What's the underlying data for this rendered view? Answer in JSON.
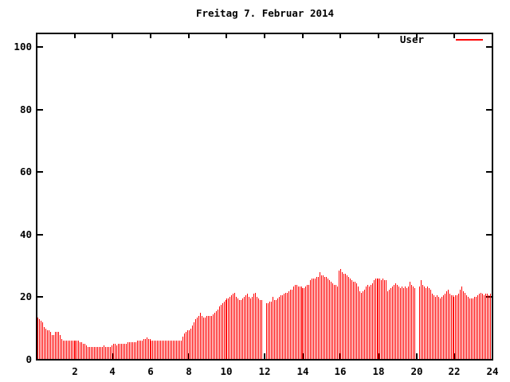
{
  "title": "Freitag 7. Februar 2014",
  "legend": {
    "label": "User",
    "position": "top-right"
  },
  "colors": {
    "bar": "#ff0000",
    "axis": "#000000",
    "background": "#ffffff",
    "text": "#000000"
  },
  "chart_data": {
    "type": "bar",
    "title": "Freitag 7. Februar 2014",
    "xlabel": "",
    "ylabel": "",
    "x_unit": "hour of day",
    "sample_step_hours": 0.08333,
    "xlim": [
      0,
      24
    ],
    "ylim": [
      0,
      104
    ],
    "x_ticks": [
      2,
      4,
      6,
      8,
      10,
      12,
      14,
      16,
      18,
      20,
      22,
      24
    ],
    "y_ticks": [
      0,
      20,
      40,
      60,
      80,
      100
    ],
    "grid": false,
    "legend_position": "top-right",
    "series": [
      {
        "name": "User",
        "color": "#ff0000",
        "values": [
          13.5,
          13,
          12.5,
          12,
          10.5,
          10,
          9.5,
          9.5,
          9,
          8,
          8,
          9,
          9,
          9,
          8,
          6.5,
          6,
          6,
          6,
          6,
          6,
          6,
          6,
          6,
          6,
          6,
          6,
          5.5,
          5.5,
          5,
          5,
          4.5,
          4,
          4,
          4,
          4,
          4,
          4,
          4,
          4,
          4,
          4,
          4.5,
          4,
          4,
          4,
          4,
          4.5,
          5,
          5,
          4.5,
          5,
          5,
          5,
          5,
          5,
          5,
          5.5,
          5.5,
          5.5,
          5.5,
          5.5,
          5.5,
          6,
          6,
          6,
          6,
          6.5,
          6.5,
          7,
          6.5,
          6.5,
          6,
          6,
          6,
          6,
          6,
          6,
          6,
          6,
          6,
          6,
          6,
          6,
          6,
          6,
          6,
          6,
          6,
          6,
          6,
          6,
          7.5,
          8.5,
          9,
          9.5,
          9.5,
          10,
          11,
          12,
          13,
          13.5,
          14,
          15,
          14,
          13.5,
          13.5,
          14,
          14,
          14,
          14,
          14.5,
          15,
          15.5,
          16,
          17,
          17.5,
          18,
          18.5,
          19,
          19.5,
          19.5,
          20,
          20.5,
          21,
          21.5,
          20,
          19.5,
          19,
          19,
          19.5,
          20,
          20.5,
          21,
          20,
          19.5,
          20,
          21,
          21.5,
          20,
          19.5,
          19,
          19,
          0,
          0,
          18,
          18,
          18.5,
          18.5,
          20,
          19,
          19,
          19.5,
          20,
          20.5,
          20.5,
          21,
          21.5,
          21.5,
          22,
          22.5,
          22.5,
          23.5,
          24,
          24,
          23.5,
          23.5,
          23.5,
          23,
          23,
          23.5,
          24,
          24,
          25.5,
          26,
          26,
          26,
          26.5,
          26.5,
          28,
          27,
          27,
          26.5,
          26.5,
          26,
          25.5,
          25,
          24.5,
          24,
          24,
          23.5,
          28.5,
          29,
          28,
          27.5,
          27.5,
          27,
          26.5,
          26,
          25.5,
          25,
          25,
          24.5,
          23.5,
          22,
          21.5,
          22,
          22.5,
          23.5,
          24,
          23.5,
          24,
          24.5,
          25.5,
          26,
          26,
          26,
          26,
          25.5,
          26,
          25.5,
          25.5,
          22,
          22.5,
          23,
          23.5,
          24,
          24.5,
          24,
          23.5,
          23,
          23.5,
          23,
          23.5,
          23,
          23.5,
          25,
          24,
          23.5,
          23,
          0,
          0,
          23.5,
          25.5,
          24,
          23.5,
          23,
          23.5,
          23,
          22.5,
          21,
          20.5,
          20,
          20.5,
          20,
          19.5,
          20,
          20.5,
          21,
          22,
          22.5,
          21,
          20.5,
          20.5,
          20,
          20.5,
          20.5,
          21,
          22.5,
          23.5,
          22,
          21.5,
          20.5,
          20,
          19.5,
          19.5,
          19.5,
          20,
          20,
          20.5,
          21,
          21.5,
          21,
          20.5,
          21,
          21,
          20.5,
          21
        ]
      }
    ]
  }
}
